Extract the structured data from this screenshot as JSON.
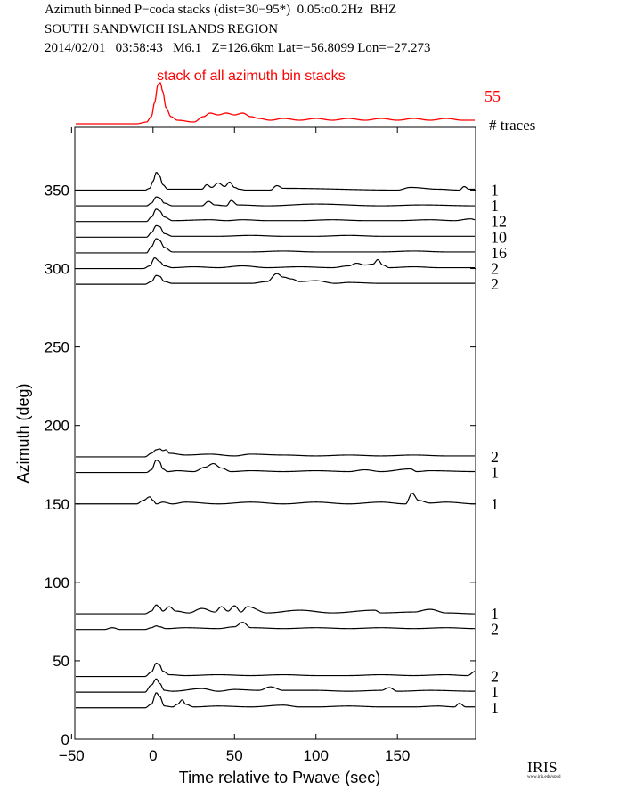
{
  "header": {
    "line1": "Azimuth binned P−coda stacks (dist=30−95*)  0.05to0.2Hz  BHZ",
    "line2": "SOUTH SANDWICH ISLANDS REGION",
    "line3": "2014/02/01   03:58:43   M6.1   Z=126.6km Lat=−56.8099 Lon=−27.273"
  },
  "logo": {
    "text": "IRIS",
    "url_text": "www.iris.edu/spud"
  },
  "chart_data": {
    "type": "line",
    "xlabel": "Time relative to Pwave (sec)",
    "ylabel": "Azimuth (deg)",
    "xlim": [
      -48,
      198
    ],
    "ylim": [
      0,
      390
    ],
    "xticks": [
      -50,
      0,
      50,
      100,
      150
    ],
    "xtick_labels": [
      "−50",
      "0",
      "50",
      "100",
      "150"
    ],
    "yticks": [
      0,
      50,
      100,
      150,
      200,
      250,
      300,
      350
    ],
    "grid": false,
    "colors": {
      "main": "#000000",
      "stack": "#ff0000"
    },
    "stack": {
      "label": "stack of all azimuth bin stacks",
      "count": "55",
      "count_header": "# traces",
      "x": [
        -48,
        -10,
        -4,
        -1,
        1,
        3,
        4.5,
        6,
        8,
        11,
        15,
        25,
        31,
        35,
        40,
        45,
        50,
        55,
        60,
        65,
        72,
        80,
        90,
        100,
        110,
        120,
        130,
        140,
        150,
        160,
        170,
        180,
        190,
        198
      ],
      "y": [
        0,
        0,
        1,
        4,
        12,
        22,
        23,
        18,
        9,
        4,
        2,
        1,
        4,
        6,
        5,
        6,
        5,
        6,
        4,
        3,
        2,
        3,
        2,
        3,
        2,
        3,
        2,
        3,
        2,
        3,
        2,
        3,
        2,
        2
      ]
    },
    "traces": [
      {
        "azimuth": 350,
        "count": "1",
        "x": [
          -48,
          -5,
          -2,
          0,
          2,
          4,
          6,
          9,
          30,
          33,
          36,
          40,
          44,
          47,
          50,
          53,
          57,
          72,
          76,
          80,
          150,
          158,
          175,
          188,
          191,
          194,
          198
        ],
        "y": [
          0,
          0,
          2,
          10,
          20,
          16,
          6,
          1,
          1,
          6,
          3,
          8,
          4,
          9,
          3,
          1,
          0,
          0,
          5,
          2,
          0,
          3,
          1,
          0,
          4,
          1,
          1
        ]
      },
      {
        "azimuth": 340,
        "count": "1",
        "x": [
          -48,
          -4,
          -1,
          2,
          4,
          7,
          12,
          30,
          34,
          38,
          45,
          48,
          52,
          70,
          100,
          140,
          165,
          198
        ],
        "y": [
          0,
          0,
          3,
          10,
          9,
          3,
          0,
          0,
          5,
          1,
          0,
          6,
          1,
          0,
          2,
          0,
          1,
          0
        ]
      },
      {
        "azimuth": 330,
        "count": "12",
        "x": [
          -48,
          -4,
          -1,
          2,
          4,
          7,
          12,
          35,
          45,
          55,
          70,
          90,
          110,
          130,
          150,
          170,
          185,
          195,
          198
        ],
        "y": [
          0,
          0,
          5,
          14,
          12,
          5,
          1,
          2,
          1,
          2,
          1,
          1,
          2,
          1,
          1,
          2,
          1,
          3,
          2
        ]
      },
      {
        "azimuth": 320,
        "count": "10",
        "x": [
          -48,
          -4,
          -1,
          2,
          4,
          7,
          12,
          40,
          60,
          80,
          100,
          120,
          140,
          160,
          180,
          198
        ],
        "y": [
          0,
          0,
          5,
          13,
          12,
          4,
          1,
          1,
          2,
          1,
          1,
          2,
          1,
          1,
          1,
          1
        ]
      },
      {
        "azimuth": 310,
        "count": "16",
        "x": [
          -48,
          -4,
          -1,
          2,
          4,
          7,
          12,
          40,
          60,
          80,
          100,
          120,
          140,
          160,
          180,
          198
        ],
        "y": [
          0,
          0,
          7,
          16,
          14,
          6,
          1,
          1,
          1,
          2,
          1,
          1,
          1,
          2,
          1,
          1
        ]
      },
      {
        "azimuth": 300,
        "count": "2",
        "x": [
          -48,
          -6,
          -2,
          1,
          4,
          7,
          12,
          25,
          40,
          55,
          70,
          90,
          110,
          120,
          125,
          130,
          135,
          138,
          141,
          145,
          160,
          175,
          198
        ],
        "y": [
          0,
          0,
          3,
          12,
          8,
          3,
          1,
          2,
          1,
          3,
          1,
          2,
          1,
          3,
          6,
          4,
          5,
          10,
          4,
          1,
          2,
          1,
          1
        ]
      },
      {
        "azimuth": 290,
        "count": "2",
        "x": [
          -48,
          -5,
          -1,
          2,
          4,
          7,
          12,
          60,
          70,
          76,
          80,
          85,
          90,
          100,
          112,
          120,
          140,
          160,
          198
        ],
        "y": [
          0,
          0,
          3,
          10,
          9,
          3,
          1,
          1,
          3,
          12,
          8,
          6,
          3,
          4,
          1,
          2,
          1,
          1,
          1
        ]
      },
      {
        "azimuth": 180,
        "count": "2",
        "x": [
          -48,
          -5,
          -1,
          2,
          4,
          6,
          8,
          10,
          20,
          35,
          50,
          60,
          80,
          100,
          120,
          140,
          160,
          180,
          198
        ],
        "y": [
          0,
          0,
          4,
          8,
          9,
          7,
          8,
          4,
          2,
          3,
          1,
          3,
          2,
          1,
          2,
          1,
          2,
          1,
          1
        ]
      },
      {
        "azimuth": 170,
        "count": "1",
        "x": [
          -48,
          -4,
          -1,
          2,
          4,
          6,
          9,
          15,
          25,
          32,
          37,
          42,
          48,
          60,
          80,
          100,
          120,
          130,
          140,
          158,
          162,
          170,
          198
        ],
        "y": [
          0,
          0,
          3,
          14,
          12,
          4,
          1,
          2,
          1,
          6,
          10,
          5,
          1,
          2,
          1,
          2,
          1,
          3,
          1,
          4,
          1,
          2,
          1
        ]
      },
      {
        "azimuth": 150,
        "count": "1",
        "x": [
          -48,
          -10,
          -6,
          -2,
          0,
          2,
          6,
          12,
          20,
          40,
          60,
          80,
          100,
          120,
          140,
          155,
          159,
          163,
          170,
          180,
          198
        ],
        "y": [
          0,
          0,
          4,
          8,
          4,
          0,
          2,
          0,
          2,
          0,
          2,
          0,
          2,
          0,
          2,
          0,
          12,
          4,
          1,
          2,
          0
        ]
      },
      {
        "azimuth": 80,
        "count": "1",
        "x": [
          -48,
          -5,
          -1,
          2,
          4,
          6,
          10,
          14,
          22,
          30,
          38,
          42,
          46,
          50,
          54,
          58,
          70,
          90,
          110,
          136,
          140,
          160,
          170,
          180,
          198
        ],
        "y": [
          0,
          0,
          3,
          10,
          7,
          3,
          8,
          3,
          1,
          6,
          2,
          8,
          3,
          9,
          2,
          8,
          1,
          4,
          1,
          4,
          1,
          2,
          5,
          1,
          0
        ]
      },
      {
        "azimuth": 70,
        "count": "2",
        "x": [
          -48,
          -30,
          -25,
          -20,
          -5,
          -1,
          2,
          4,
          8,
          20,
          40,
          50,
          55,
          60,
          80,
          100,
          120,
          140,
          160,
          180,
          198
        ],
        "y": [
          0,
          0,
          2,
          0,
          0,
          2,
          4,
          3,
          1,
          2,
          1,
          3,
          8,
          2,
          1,
          2,
          1,
          2,
          1,
          2,
          1
        ]
      },
      {
        "azimuth": 40,
        "count": "2",
        "x": [
          -48,
          -5,
          -1,
          2,
          4,
          6,
          10,
          20,
          40,
          60,
          80,
          100,
          120,
          140,
          160,
          180,
          193,
          198
        ],
        "y": [
          0,
          0,
          5,
          15,
          13,
          6,
          2,
          1,
          2,
          1,
          2,
          1,
          1,
          2,
          1,
          2,
          1,
          6
        ]
      },
      {
        "azimuth": 30,
        "count": "1",
        "x": [
          -48,
          -5,
          -1,
          2,
          4,
          7,
          12,
          30,
          40,
          50,
          65,
          72,
          80,
          100,
          120,
          140,
          145,
          150,
          170,
          198
        ],
        "y": [
          0,
          0,
          8,
          15,
          10,
          2,
          1,
          4,
          1,
          3,
          2,
          6,
          2,
          2,
          1,
          2,
          5,
          1,
          2,
          1
        ]
      },
      {
        "azimuth": 20,
        "count": "1",
        "x": [
          -48,
          -5,
          -1,
          2,
          4,
          7,
          12,
          15,
          18,
          20,
          25,
          40,
          60,
          80,
          90,
          100,
          120,
          140,
          160,
          175,
          185,
          188,
          192,
          198
        ],
        "y": [
          0,
          0,
          4,
          17,
          13,
          2,
          1,
          4,
          9,
          4,
          1,
          2,
          1,
          3,
          1,
          1,
          2,
          1,
          1,
          2,
          1,
          5,
          1,
          1
        ]
      }
    ]
  }
}
